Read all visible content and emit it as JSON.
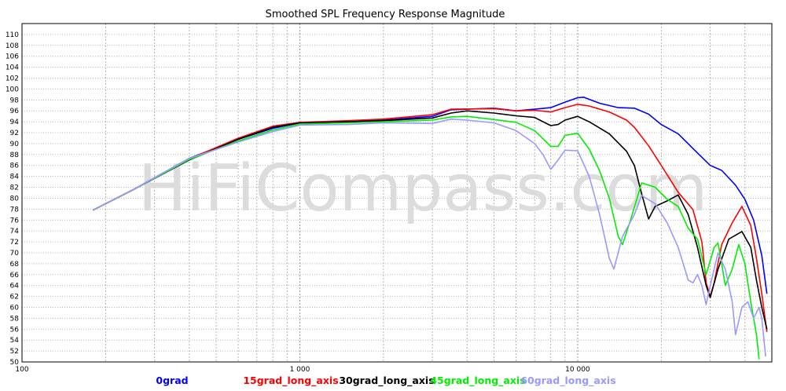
{
  "chart_data": {
    "type": "line",
    "title": "Smoothed SPL Frequency Response Magnitude",
    "watermark": "HiFiCompass.com",
    "xscale": "log",
    "xlim": [
      100,
      50000
    ],
    "ylim": [
      50,
      112
    ],
    "x_tick_labels": [
      {
        "value": 100,
        "label": "100"
      },
      {
        "value": 1000,
        "label": "1 000"
      },
      {
        "value": 10000,
        "label": "10 000"
      }
    ],
    "y_ticks": [
      50,
      52,
      54,
      56,
      58,
      60,
      62,
      64,
      66,
      68,
      70,
      72,
      74,
      76,
      78,
      80,
      82,
      84,
      86,
      88,
      90,
      92,
      94,
      96,
      98,
      100,
      102,
      104,
      106,
      108,
      110
    ],
    "grid": true,
    "legend_position": "bottom",
    "series": [
      {
        "name": "0grad",
        "color": "#0000ff",
        "points": [
          [
            180,
            77.8
          ],
          [
            250,
            81.5
          ],
          [
            400,
            87.3
          ],
          [
            600,
            90.8
          ],
          [
            800,
            92.8
          ],
          [
            1000,
            93.8
          ],
          [
            1500,
            94.1
          ],
          [
            2000,
            94.3
          ],
          [
            3000,
            95.0
          ],
          [
            3500,
            96.2
          ],
          [
            5000,
            96.5
          ],
          [
            6000,
            96.0
          ],
          [
            7000,
            96.3
          ],
          [
            8000,
            96.6
          ],
          [
            9000,
            97.6
          ],
          [
            10000,
            98.4
          ],
          [
            10500,
            98.5
          ],
          [
            12000,
            97.4
          ],
          [
            14000,
            96.6
          ],
          [
            16000,
            96.5
          ],
          [
            18000,
            95.4
          ],
          [
            20000,
            93.5
          ],
          [
            23000,
            91.8
          ],
          [
            27000,
            88.3
          ],
          [
            30000,
            86.0
          ],
          [
            33000,
            85.1
          ],
          [
            37000,
            82.4
          ],
          [
            40000,
            79.8
          ],
          [
            43000,
            76.0
          ],
          [
            46000,
            69.5
          ],
          [
            48000,
            62.5
          ]
        ]
      },
      {
        "name": "15grad_long_axis",
        "color": "#ff0000",
        "points": [
          [
            180,
            77.8
          ],
          [
            250,
            81.5
          ],
          [
            400,
            87.2
          ],
          [
            600,
            91.0
          ],
          [
            800,
            93.2
          ],
          [
            1000,
            93.9
          ],
          [
            1500,
            94.2
          ],
          [
            2000,
            94.5
          ],
          [
            3000,
            95.3
          ],
          [
            3500,
            96.3
          ],
          [
            5000,
            96.4
          ],
          [
            6000,
            96.0
          ],
          [
            7000,
            96.1
          ],
          [
            8000,
            95.8
          ],
          [
            9000,
            96.6
          ],
          [
            10000,
            97.2
          ],
          [
            11000,
            96.9
          ],
          [
            13000,
            95.8
          ],
          [
            15000,
            94.3
          ],
          [
            16000,
            93.0
          ],
          [
            18000,
            89.6
          ],
          [
            20000,
            86.0
          ],
          [
            23000,
            81.1
          ],
          [
            26000,
            77.9
          ],
          [
            28000,
            72.0
          ],
          [
            29000,
            64.5
          ],
          [
            30000,
            62.0
          ],
          [
            31000,
            64.5
          ],
          [
            33000,
            71.5
          ],
          [
            36000,
            75.5
          ],
          [
            39000,
            78.5
          ],
          [
            42000,
            75.0
          ],
          [
            44000,
            69.0
          ],
          [
            46000,
            62.5
          ],
          [
            48000,
            55.5
          ]
        ]
      },
      {
        "name": "30grad_long_axis",
        "color": "#000000",
        "points": [
          [
            180,
            77.8
          ],
          [
            250,
            81.5
          ],
          [
            400,
            87.0
          ],
          [
            600,
            90.8
          ],
          [
            800,
            93.0
          ],
          [
            1000,
            93.8
          ],
          [
            1500,
            94.0
          ],
          [
            2000,
            94.2
          ],
          [
            3000,
            94.7
          ],
          [
            3500,
            95.6
          ],
          [
            4000,
            96.0
          ],
          [
            5000,
            95.6
          ],
          [
            6000,
            95.1
          ],
          [
            7000,
            94.8
          ],
          [
            8000,
            93.3
          ],
          [
            8500,
            93.5
          ],
          [
            9000,
            94.3
          ],
          [
            10000,
            95.0
          ],
          [
            11000,
            94.0
          ],
          [
            13000,
            91.8
          ],
          [
            15000,
            88.6
          ],
          [
            16000,
            86.0
          ],
          [
            17000,
            80.8
          ],
          [
            18000,
            76.2
          ],
          [
            19000,
            78.5
          ],
          [
            21000,
            79.5
          ],
          [
            23000,
            80.6
          ],
          [
            25000,
            77.0
          ],
          [
            27000,
            71.0
          ],
          [
            29000,
            64.0
          ],
          [
            30000,
            61.8
          ],
          [
            32000,
            67.0
          ],
          [
            35000,
            72.5
          ],
          [
            39000,
            73.9
          ],
          [
            42000,
            71.0
          ],
          [
            44000,
            65.0
          ],
          [
            46000,
            60.0
          ],
          [
            48000,
            56.0
          ]
        ]
      },
      {
        "name": "45grad_long_axis",
        "color": "#00ee00",
        "points": [
          [
            180,
            77.8
          ],
          [
            250,
            81.5
          ],
          [
            400,
            87.1
          ],
          [
            600,
            90.5
          ],
          [
            800,
            92.5
          ],
          [
            1000,
            93.6
          ],
          [
            1500,
            93.8
          ],
          [
            2000,
            94.0
          ],
          [
            3000,
            94.3
          ],
          [
            3500,
            94.9
          ],
          [
            4000,
            95.0
          ],
          [
            5000,
            94.4
          ],
          [
            6000,
            93.9
          ],
          [
            7000,
            92.4
          ],
          [
            8000,
            89.5
          ],
          [
            8500,
            89.5
          ],
          [
            9000,
            91.5
          ],
          [
            10000,
            91.9
          ],
          [
            11000,
            89.0
          ],
          [
            12000,
            85.0
          ],
          [
            13000,
            80.0
          ],
          [
            14000,
            73.0
          ],
          [
            14500,
            71.5
          ],
          [
            15500,
            76.0
          ],
          [
            17000,
            82.8
          ],
          [
            19000,
            82.0
          ],
          [
            21000,
            79.8
          ],
          [
            23000,
            78.5
          ],
          [
            25000,
            74.5
          ],
          [
            27000,
            72.5
          ],
          [
            29000,
            66.0
          ],
          [
            31000,
            71.0
          ],
          [
            32000,
            71.8
          ],
          [
            33000,
            68.0
          ],
          [
            34000,
            64.0
          ],
          [
            36000,
            67.0
          ],
          [
            38000,
            71.5
          ],
          [
            40000,
            68.0
          ],
          [
            42000,
            61.0
          ],
          [
            44000,
            55.0
          ],
          [
            45000,
            50.5
          ]
        ]
      },
      {
        "name": "60grad_long_axis",
        "color": "#9999ff",
        "points": [
          [
            180,
            77.8
          ],
          [
            250,
            81.5
          ],
          [
            400,
            87.3
          ],
          [
            600,
            90.3
          ],
          [
            800,
            92.2
          ],
          [
            1000,
            93.4
          ],
          [
            1500,
            93.5
          ],
          [
            2000,
            93.8
          ],
          [
            3000,
            93.7
          ],
          [
            3500,
            94.5
          ],
          [
            4000,
            94.3
          ],
          [
            5000,
            93.8
          ],
          [
            6000,
            92.4
          ],
          [
            7000,
            90.0
          ],
          [
            7500,
            88.0
          ],
          [
            8000,
            85.3
          ],
          [
            8500,
            87.0
          ],
          [
            9000,
            88.8
          ],
          [
            10000,
            88.7
          ],
          [
            11000,
            84.0
          ],
          [
            12000,
            77.0
          ],
          [
            13000,
            69.0
          ],
          [
            13500,
            67.0
          ],
          [
            14500,
            73.0
          ],
          [
            16000,
            77.0
          ],
          [
            17000,
            80.5
          ],
          [
            19000,
            79.0
          ],
          [
            21000,
            75.5
          ],
          [
            23000,
            71.0
          ],
          [
            25000,
            65.0
          ],
          [
            26000,
            64.5
          ],
          [
            27000,
            66.0
          ],
          [
            28000,
            64.0
          ],
          [
            29000,
            60.5
          ],
          [
            30000,
            64.0
          ],
          [
            32000,
            70.0
          ],
          [
            34000,
            67.0
          ],
          [
            36000,
            61.0
          ],
          [
            37000,
            55.0
          ],
          [
            39000,
            60.0
          ],
          [
            41000,
            61.0
          ],
          [
            43000,
            58.0
          ],
          [
            45000,
            60.0
          ],
          [
            46000,
            58.0
          ],
          [
            47500,
            51.0
          ]
        ]
      }
    ]
  }
}
